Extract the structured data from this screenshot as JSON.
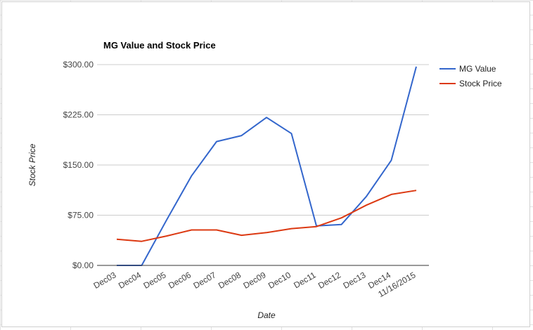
{
  "chart_data": {
    "type": "line",
    "title": "MG Value and Stock Price",
    "xlabel": "Date",
    "ylabel": "Stock Price",
    "categories": [
      "Dec03",
      "Dec04",
      "Dec05",
      "Dec06",
      "Dec07",
      "Dec08",
      "Dec09",
      "Dec10",
      "Dec11",
      "Dec12",
      "Dec13",
      "Dec14",
      "11/16/2015"
    ],
    "yticks": [
      "$0.00",
      "$75.00",
      "$150.00",
      "$225.00",
      "$300.00"
    ],
    "ylim": [
      0,
      300
    ],
    "grid": true,
    "legend_position": "right",
    "series": [
      {
        "name": "MG Value",
        "color": "#3366cc",
        "values": [
          0,
          0,
          68,
          134,
          185,
          194,
          221,
          197,
          59,
          61,
          103,
          157,
          297
        ]
      },
      {
        "name": "Stock Price",
        "color": "#dc3912",
        "values": [
          39,
          36,
          44,
          53,
          53,
          45,
          49,
          55,
          58,
          71,
          90,
          106,
          112
        ]
      }
    ]
  }
}
